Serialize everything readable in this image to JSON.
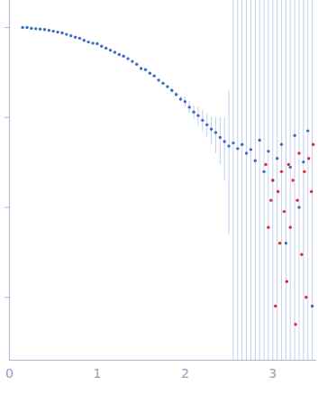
{
  "chart_data": {
    "type": "scatter",
    "log": "y",
    "grid": false,
    "tick_labels": "x",
    "xlim": [
      0,
      3.5
    ],
    "xticks": [
      0,
      1,
      2,
      3
    ],
    "ylim": [
      0.0002,
      2
    ],
    "yticks": [
      1,
      0.1,
      0.01,
      0.001
    ],
    "series": [
      {
        "color": "#3a6cc6",
        "marker": "circle",
        "x": [
          0.15,
          0.2,
          0.25,
          0.3,
          0.35,
          0.4,
          0.45,
          0.5,
          0.55,
          0.6,
          0.65,
          0.7,
          0.75,
          0.8,
          0.85,
          0.9,
          0.95,
          1.0,
          1.05,
          1.1,
          1.15,
          1.2,
          1.25,
          1.3,
          1.35,
          1.4,
          1.45,
          1.5,
          1.55,
          1.6,
          1.65,
          1.7,
          1.75,
          1.8,
          1.85,
          1.9,
          1.95,
          2.0,
          2.05,
          2.1,
          2.15,
          2.2,
          2.25,
          2.3,
          2.35,
          2.4,
          2.45,
          2.5,
          2.55,
          2.6,
          2.65,
          2.7,
          2.75,
          2.8,
          2.85,
          2.9,
          2.95,
          3.0,
          3.05,
          3.1,
          3.15,
          3.2,
          3.25,
          3.3,
          3.35,
          3.4,
          3.45
        ],
        "values": [
          1.0,
          1.0,
          0.98,
          0.97,
          0.96,
          0.95,
          0.93,
          0.91,
          0.89,
          0.87,
          0.84,
          0.81,
          0.78,
          0.76,
          0.72,
          0.69,
          0.67,
          0.66,
          0.62,
          0.59,
          0.56,
          0.53,
          0.5,
          0.48,
          0.45,
          0.42,
          0.39,
          0.35,
          0.34,
          0.31,
          0.29,
          0.26,
          0.24,
          0.22,
          0.2,
          0.18,
          0.16,
          0.15,
          0.13,
          0.115,
          0.105,
          0.093,
          0.083,
          0.074,
          0.068,
          0.06,
          0.054,
          0.048,
          0.052,
          0.045,
          0.05,
          0.04,
          0.044,
          0.033,
          0.056,
          0.025,
          0.042,
          0.02,
          0.035,
          0.05,
          0.004,
          0.028,
          0.063,
          0.01,
          0.032,
          0.071,
          0.0008
        ],
        "error_low": [
          0.99,
          0.99,
          0.97,
          0.96,
          0.95,
          0.94,
          0.92,
          0.9,
          0.88,
          0.86,
          0.83,
          0.8,
          0.77,
          0.75,
          0.71,
          0.68,
          0.66,
          0.65,
          0.61,
          0.58,
          0.55,
          0.52,
          0.49,
          0.47,
          0.44,
          0.41,
          0.38,
          0.34,
          0.33,
          0.3,
          0.28,
          0.25,
          0.23,
          0.21,
          0.19,
          0.17,
          0.15,
          0.13,
          0.11,
          0.095,
          0.08,
          0.07,
          0.06,
          0.05,
          0.04,
          0.03,
          0.02,
          0.005,
          0.0001,
          0.0001,
          0.0001,
          0.0001,
          0.0001,
          0.0001,
          0.0001,
          0.0001,
          0.0001,
          0.0001,
          0.0001,
          0.0001,
          0.0001,
          0.0001,
          0.0001,
          0.0001,
          0.0001,
          0.0001,
          0.0001
        ],
        "error_high": [
          1.01,
          1.01,
          0.99,
          0.98,
          0.97,
          0.96,
          0.94,
          0.92,
          0.9,
          0.88,
          0.85,
          0.82,
          0.79,
          0.77,
          0.73,
          0.7,
          0.68,
          0.67,
          0.63,
          0.6,
          0.57,
          0.54,
          0.51,
          0.49,
          0.46,
          0.43,
          0.4,
          0.36,
          0.35,
          0.32,
          0.3,
          0.27,
          0.25,
          0.23,
          0.21,
          0.19,
          0.17,
          0.17,
          0.15,
          0.135,
          0.13,
          0.12,
          0.11,
          0.1,
          0.1,
          0.1,
          0.1,
          0.2,
          10,
          10,
          10,
          10,
          10,
          10,
          10,
          10,
          10,
          10,
          10,
          10,
          10,
          10,
          10,
          10,
          10,
          10,
          10
        ]
      },
      {
        "color": "#e0282e",
        "marker": "circle",
        "x": [
          2.92,
          2.95,
          2.98,
          3.0,
          3.03,
          3.06,
          3.08,
          3.1,
          3.13,
          3.16,
          3.18,
          3.2,
          3.23,
          3.26,
          3.28,
          3.3,
          3.33,
          3.36,
          3.38,
          3.41,
          3.44,
          3.46
        ],
        "values": [
          0.03,
          0.006,
          0.012,
          0.02,
          0.0008,
          0.015,
          0.004,
          0.025,
          0.009,
          0.0015,
          0.03,
          0.006,
          0.02,
          0.0005,
          0.012,
          0.04,
          0.003,
          0.025,
          0.001,
          0.035,
          0.015,
          0.05
        ]
      }
    ]
  }
}
